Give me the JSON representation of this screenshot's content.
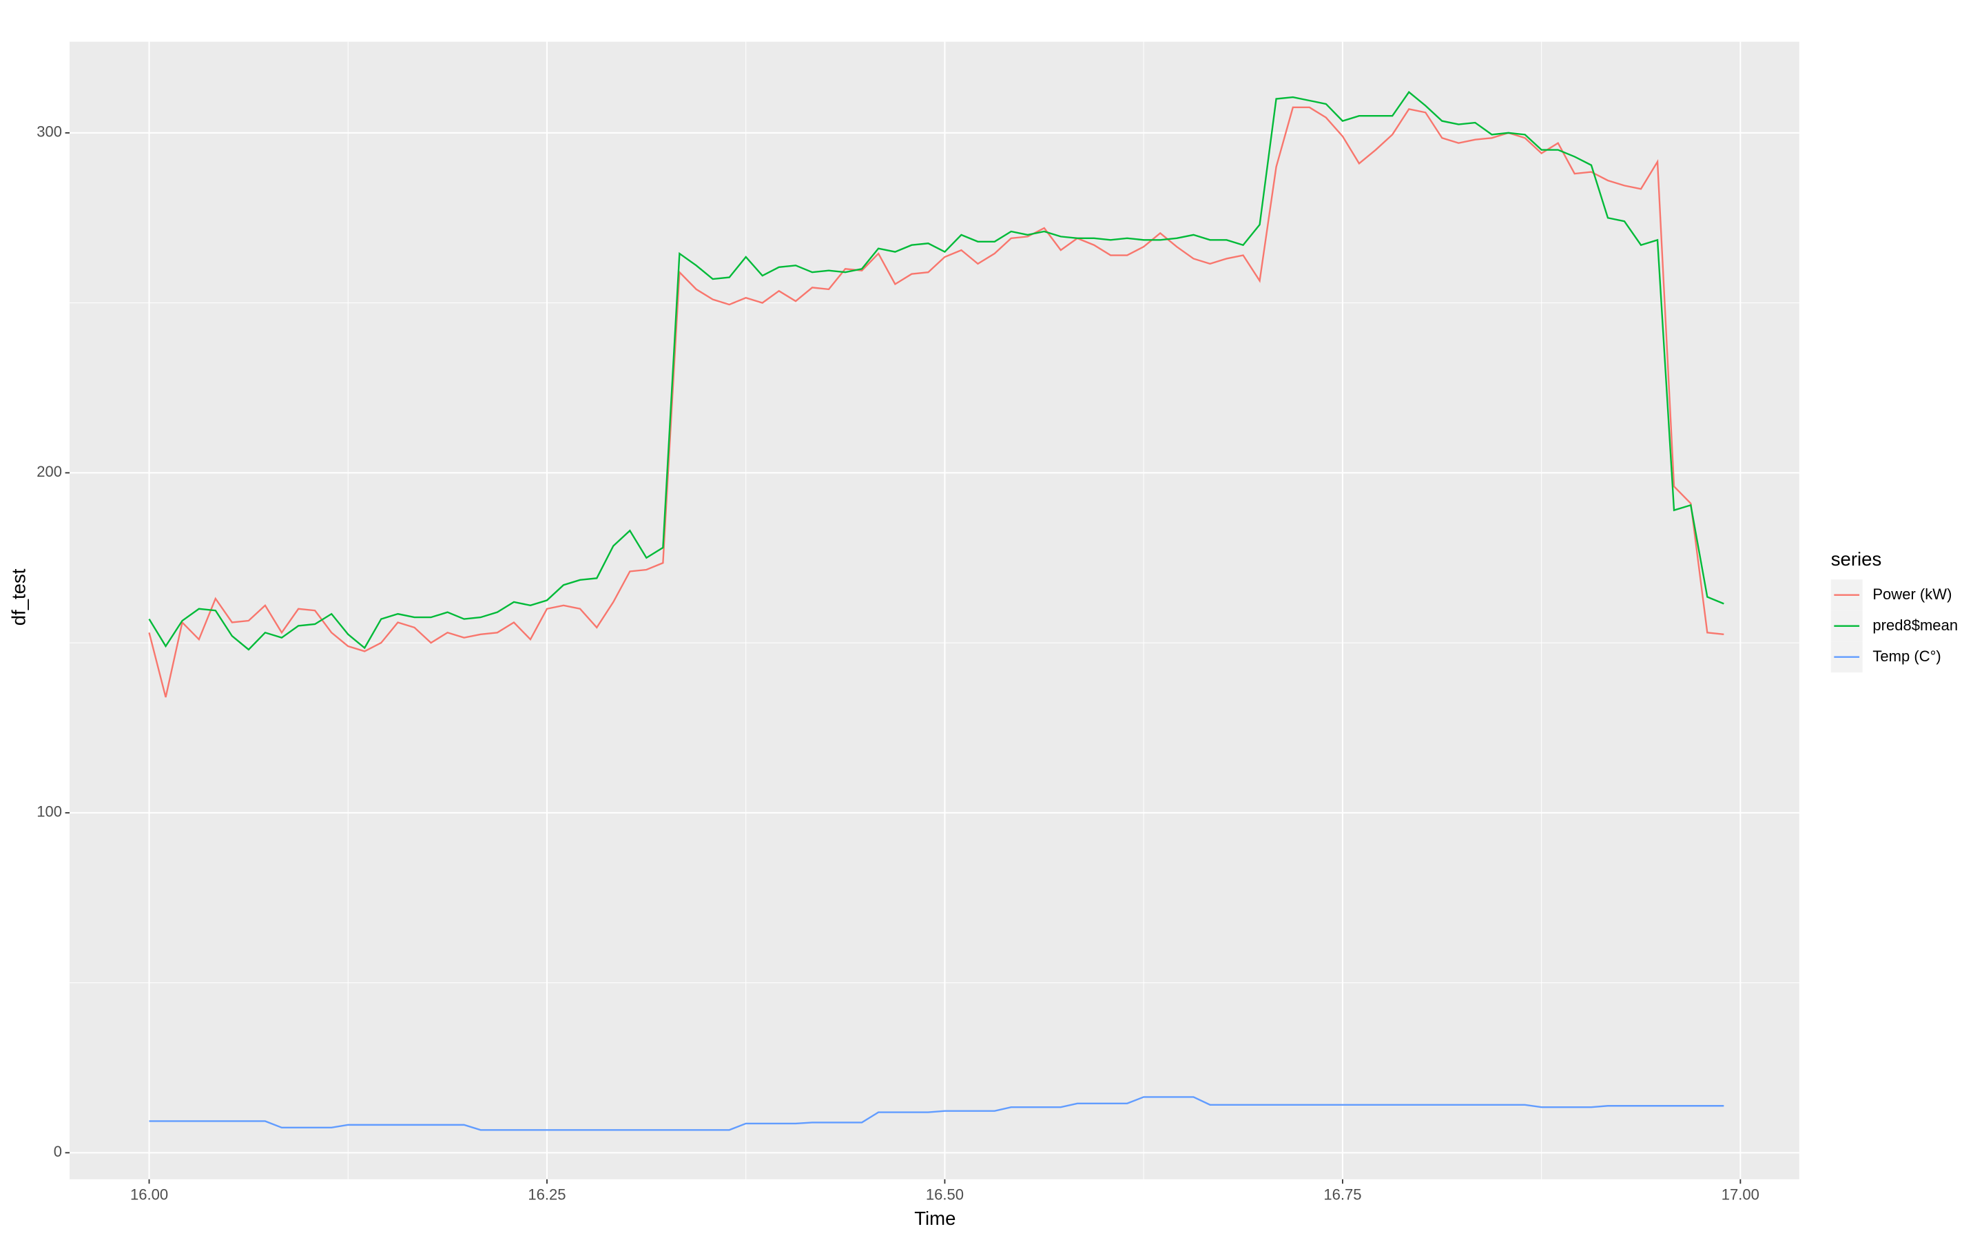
{
  "chart_data": {
    "type": "line",
    "xlabel": "Time",
    "ylabel": "df_test",
    "legend_title": "series",
    "legend": "right",
    "grid": true,
    "panel_color": "#ebebeb",
    "xlim": [
      15.95,
      17.037
    ],
    "ylim": [
      -7.8,
      326.8
    ],
    "xticks": [
      {
        "value": 16,
        "label": "16.00"
      },
      {
        "value": 16.25,
        "label": "16.25"
      },
      {
        "value": 16.5,
        "label": "16.50"
      },
      {
        "value": 16.75,
        "label": "16.75"
      },
      {
        "value": 17,
        "label": "17.00"
      }
    ],
    "yticks": [
      0,
      100,
      200,
      300
    ],
    "xminor": [
      16.125,
      16.375,
      16.625,
      16.875
    ],
    "yminor": [
      50,
      150,
      250
    ],
    "x": [
      16,
      16.0104,
      16.0208,
      16.0313,
      16.0417,
      16.0521,
      16.0625,
      16.0729,
      16.0833,
      16.0938,
      16.1042,
      16.1146,
      16.125,
      16.1354,
      16.1458,
      16.1563,
      16.1667,
      16.1771,
      16.1875,
      16.1979,
      16.2083,
      16.2188,
      16.2292,
      16.2396,
      16.25,
      16.2604,
      16.2708,
      16.2813,
      16.2917,
      16.3021,
      16.3125,
      16.3229,
      16.3333,
      16.3438,
      16.3542,
      16.3646,
      16.375,
      16.3854,
      16.3958,
      16.4063,
      16.4167,
      16.4271,
      16.4375,
      16.4479,
      16.4583,
      16.4688,
      16.4792,
      16.4896,
      16.5,
      16.5104,
      16.5208,
      16.5313,
      16.5417,
      16.5521,
      16.5625,
      16.5729,
      16.5833,
      16.5938,
      16.6042,
      16.6146,
      16.625,
      16.6354,
      16.6458,
      16.6563,
      16.6667,
      16.6771,
      16.6875,
      16.6979,
      16.7083,
      16.7188,
      16.7292,
      16.7396,
      16.75,
      16.7604,
      16.7708,
      16.7813,
      16.7917,
      16.8021,
      16.8125,
      16.8229,
      16.8333,
      16.8438,
      16.8542,
      16.8646,
      16.875,
      16.8854,
      16.8958,
      16.9063,
      16.9167,
      16.9271,
      16.9375,
      16.9479,
      16.9583,
      16.9688,
      16.9792,
      16.9896
    ],
    "series": [
      {
        "name": "Power (kW)",
        "color": "#F8766D",
        "values": [
          153,
          134,
          156,
          151,
          163,
          156,
          156.5,
          161,
          153,
          160,
          159.5,
          153,
          149,
          147.5,
          150,
          156,
          154.5,
          150,
          153,
          151.5,
          152.5,
          153,
          156,
          151,
          160,
          161,
          160,
          154.5,
          162,
          171,
          171.5,
          173.5,
          259,
          254,
          251,
          249.5,
          251.5,
          250,
          253.5,
          250.5,
          254.5,
          254,
          260,
          259.5,
          264.5,
          255.5,
          258.5,
          259,
          263.5,
          265.5,
          261.5,
          264.5,
          269,
          269.5,
          272,
          265.5,
          269,
          267,
          264,
          264,
          266.5,
          270.5,
          266.5,
          263,
          261.5,
          263,
          264,
          256.5,
          290,
          307.5,
          307.5,
          304.5,
          299,
          291,
          295,
          299.5,
          307,
          306,
          298.5,
          297,
          298,
          298.5,
          300,
          298.5,
          294,
          297,
          288,
          288.5,
          286,
          284.5,
          283.5,
          291.5,
          196,
          191,
          153,
          152.5
        ]
      },
      {
        "name": "pred8$mean",
        "color": "#00BA38",
        "values": [
          157,
          149,
          156.5,
          160,
          159.5,
          152,
          148,
          153,
          151.5,
          155,
          155.5,
          158.5,
          152.5,
          148.5,
          157,
          158.5,
          157.5,
          157.5,
          159,
          157,
          157.5,
          159,
          162,
          161,
          162.5,
          167,
          168.5,
          169,
          178.5,
          183,
          175,
          178,
          264.5,
          261,
          257,
          257.5,
          263.5,
          258,
          260.5,
          261,
          259,
          259.5,
          259,
          260,
          266,
          265,
          267,
          267.5,
          265,
          270,
          268,
          268,
          271,
          270,
          271,
          269.5,
          269,
          269,
          268.5,
          269,
          268.5,
          268.5,
          269,
          270,
          268.5,
          268.5,
          267,
          273,
          310,
          310.5,
          309.5,
          308.5,
          303.5,
          305,
          305,
          305,
          312,
          308,
          303.5,
          302.5,
          303,
          299.5,
          300,
          299.5,
          295,
          295,
          293,
          290.5,
          275,
          274,
          267,
          268.5,
          189,
          190.5,
          163.5,
          161.5
        ]
      },
      {
        "name": "Temp (C°)",
        "color": "#619CFF",
        "values": [
          9.3,
          9.3,
          9.3,
          9.3,
          9.3,
          9.3,
          9.3,
          9.3,
          7.4,
          7.4,
          7.4,
          7.4,
          8.2,
          8.2,
          8.2,
          8.2,
          8.2,
          8.2,
          8.2,
          8.2,
          6.7,
          6.7,
          6.7,
          6.7,
          6.7,
          6.7,
          6.7,
          6.7,
          6.7,
          6.7,
          6.7,
          6.7,
          6.7,
          6.7,
          6.7,
          6.7,
          8.6,
          8.6,
          8.6,
          8.6,
          8.9,
          8.9,
          8.9,
          8.9,
          11.9,
          11.9,
          11.9,
          11.9,
          12.3,
          12.3,
          12.3,
          12.3,
          13.4,
          13.4,
          13.4,
          13.4,
          14.5,
          14.5,
          14.5,
          14.5,
          16.4,
          16.4,
          16.4,
          16.4,
          14.1,
          14.1,
          14.1,
          14.1,
          14.1,
          14.1,
          14.1,
          14.1,
          14.1,
          14.1,
          14.1,
          14.1,
          14.1,
          14.1,
          14.1,
          14.1,
          14.1,
          14.1,
          14.1,
          14.1,
          13.4,
          13.4,
          13.4,
          13.4,
          13.8,
          13.8,
          13.8,
          13.8,
          13.8,
          13.8,
          13.8,
          13.8
        ]
      }
    ]
  }
}
